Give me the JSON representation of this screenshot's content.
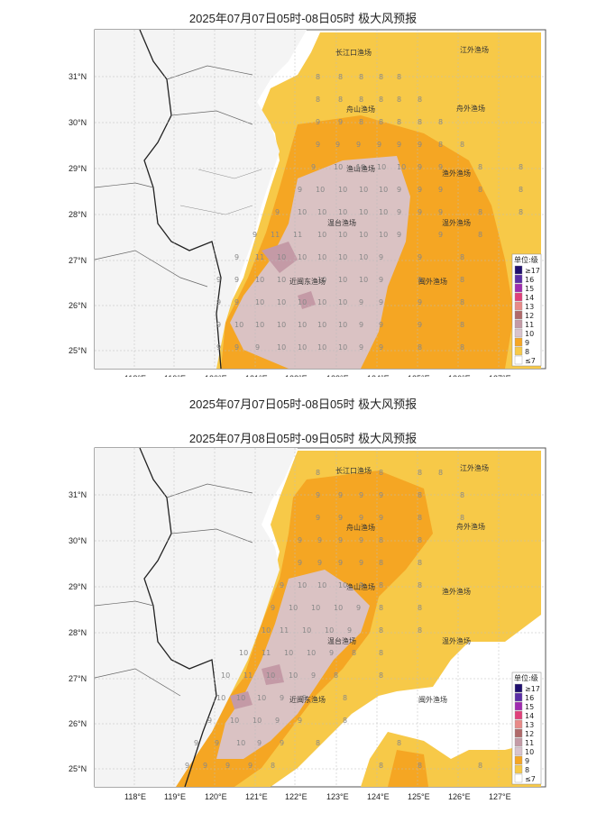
{
  "panel1": {
    "title": "2025年07月07日05时-08日05时 极大风预报",
    "caption": "2025年07月07日05时-08日05时  极大风预报"
  },
  "panel2": {
    "title": "2025年07月08日05时-09日05时 极大风预报"
  },
  "axes": {
    "lon_labels": [
      "118°E",
      "119°E",
      "120°E",
      "121°E",
      "122°E",
      "123°E",
      "124°E",
      "125°E",
      "126°E",
      "127°E"
    ],
    "lat_labels": [
      "31°N",
      "30°N",
      "29°N",
      "28°N",
      "27°N",
      "26°N",
      "25°N"
    ]
  },
  "fishing_grounds": {
    "changjiangkou": "长江口渔场",
    "jiangwai": "江外渔场",
    "zhoushan": "舟山渔场",
    "zhouwai": "舟外渔场",
    "yushan": "渔山渔场",
    "yuwai": "渔外渔场",
    "wentai": "温台渔场",
    "wenwai": "温外渔场",
    "minwai": "闽外渔场",
    "mindong": "近闽东渔场"
  },
  "legend": {
    "title": "单位:级",
    "items": [
      {
        "label": "≥17",
        "color": "#1f0f6e"
      },
      {
        "label": "16",
        "color": "#5b2ea6"
      },
      {
        "label": "15",
        "color": "#a02bb0"
      },
      {
        "label": "14",
        "color": "#e0407a"
      },
      {
        "label": "13",
        "color": "#e88a88"
      },
      {
        "label": "12",
        "color": "#b06a6a"
      },
      {
        "label": "11",
        "color": "#c49aa6"
      },
      {
        "label": "10",
        "color": "#d8c3cc"
      },
      {
        "label": "9",
        "color": "#f5a623"
      },
      {
        "label": "8",
        "color": "#f7c948"
      },
      {
        "label": "≤7",
        "color": "#ffffff"
      }
    ]
  }
}
